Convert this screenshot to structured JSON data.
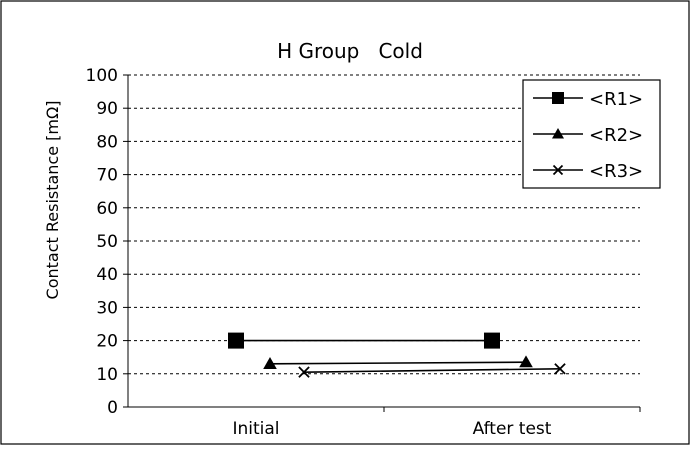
{
  "chart_data": {
    "type": "line",
    "title": "H Group   Cold",
    "xlabel": "",
    "ylabel": "Contact Resistance [mΩ]",
    "ylim": [
      0,
      100
    ],
    "yticks": [
      0,
      10,
      20,
      30,
      40,
      50,
      60,
      70,
      80,
      90,
      100
    ],
    "categories": [
      "Initial",
      "After test"
    ],
    "grid": "horizontal dashed",
    "legend_position": "top-right",
    "series": [
      {
        "name": "<R1>",
        "marker": "square",
        "values": [
          20,
          20
        ]
      },
      {
        "name": "<R2>",
        "marker": "triangle",
        "values": [
          13,
          13.5
        ]
      },
      {
        "name": "<R3>",
        "marker": "x",
        "values": [
          10.5,
          11.5
        ]
      }
    ]
  }
}
